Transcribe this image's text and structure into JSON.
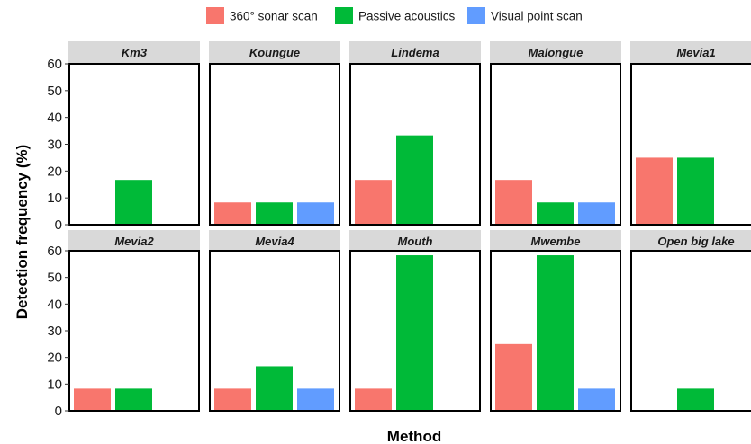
{
  "chart_data": {
    "type": "bar",
    "xlabel": "Method",
    "ylabel": "Detection frequency (%)",
    "ylim": [
      0,
      60
    ],
    "yticks": [
      0,
      10,
      20,
      30,
      40,
      50,
      60
    ],
    "grid": false,
    "legend_position": "top",
    "categories": [
      "360° sonar scan",
      "Passive acoustics",
      "Visual point scan"
    ],
    "colors": {
      "360° sonar scan": "#F8766D",
      "Passive acoustics": "#00BA38",
      "Visual point scan": "#619CFF"
    },
    "panels": [
      {
        "name": "Km3",
        "values": [
          0,
          16.7,
          0
        ]
      },
      {
        "name": "Koungue",
        "values": [
          8.3,
          8.3,
          8.3
        ]
      },
      {
        "name": "Lindema",
        "values": [
          16.7,
          33.3,
          0
        ]
      },
      {
        "name": "Malongue",
        "values": [
          16.7,
          8.3,
          8.3
        ]
      },
      {
        "name": "Mevia1",
        "values": [
          25,
          25,
          0
        ]
      },
      {
        "name": "Mevia2",
        "values": [
          8.3,
          8.3,
          0
        ]
      },
      {
        "name": "Mevia4",
        "values": [
          8.3,
          16.7,
          8.3
        ]
      },
      {
        "name": "Mouth",
        "values": [
          8.3,
          58.3,
          0
        ]
      },
      {
        "name": "Mwembe",
        "values": [
          25,
          58.3,
          8.3
        ]
      },
      {
        "name": "Open big lake",
        "values": [
          0,
          8.3,
          0
        ]
      }
    ]
  }
}
